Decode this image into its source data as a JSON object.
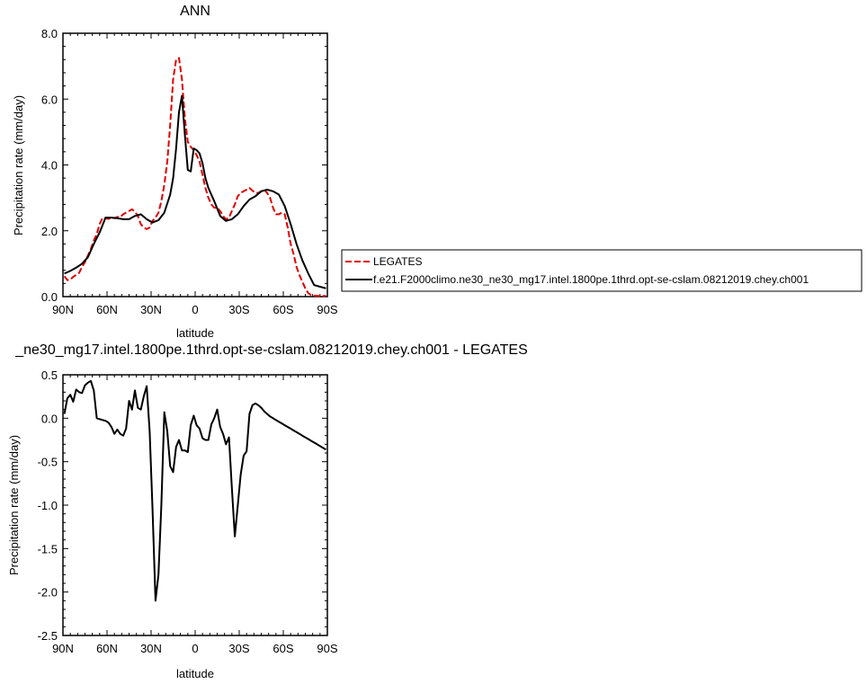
{
  "chart_data": [
    {
      "type": "line",
      "title": "ANN",
      "xlabel": "latitude",
      "ylabel": "Precipitation rate (mm/day)",
      "xlim": [
        90,
        -90
      ],
      "ylim": [
        0,
        8
      ],
      "xticks": [
        90,
        60,
        30,
        0,
        -30,
        -60,
        -90
      ],
      "xtick_labels": [
        "90N",
        "60N",
        "30N",
        "0",
        "30S",
        "60S",
        "90S"
      ],
      "yticks": [
        0,
        2,
        4,
        6,
        8
      ],
      "ytick_labels": [
        "0.0",
        "2.0",
        "4.0",
        "6.0",
        "8.0"
      ],
      "legend_position": "right",
      "series": [
        {
          "name": "LEGATES",
          "color": "#e00000",
          "dash": "dashed",
          "x": [
            89,
            87,
            85,
            83,
            81,
            79,
            77,
            75,
            73,
            71,
            69,
            67,
            65,
            63,
            61,
            59,
            57,
            55,
            53,
            51,
            49,
            47,
            45,
            43,
            41,
            39,
            37,
            35,
            33,
            31,
            29,
            27,
            25,
            23,
            21,
            19,
            17,
            15,
            13,
            11,
            9,
            7,
            5,
            3,
            1,
            -1,
            -3,
            -5,
            -7,
            -9,
            -11,
            -13,
            -15,
            -17,
            -19,
            -21,
            -23,
            -25,
            -27,
            -29,
            -31,
            -33,
            -35,
            -37,
            -39,
            -41,
            -43,
            -45,
            -47,
            -49,
            -51,
            -53,
            -55,
            -57,
            -59,
            -61,
            -63,
            -65,
            -67,
            -69,
            -71,
            -73,
            -75,
            -77,
            -79,
            -81,
            -83,
            -85,
            -87,
            -89
          ],
          "y": [
            0.62,
            0.5,
            0.52,
            0.6,
            0.66,
            0.72,
            0.9,
            1.05,
            1.25,
            1.45,
            1.7,
            1.9,
            2.2,
            2.4,
            2.38,
            2.36,
            2.4,
            2.38,
            2.42,
            2.42,
            2.5,
            2.55,
            2.6,
            2.65,
            2.58,
            2.45,
            2.2,
            2.1,
            2.05,
            2.1,
            2.3,
            2.4,
            2.55,
            2.9,
            3.4,
            4.1,
            5.2,
            6.6,
            7.2,
            7.25,
            6.6,
            5.4,
            4.7,
            4.55,
            4.45,
            4.3,
            4.1,
            3.7,
            3.3,
            3.0,
            2.8,
            2.7,
            2.7,
            2.6,
            2.45,
            2.35,
            2.4,
            2.6,
            2.8,
            3.05,
            3.15,
            3.2,
            3.25,
            3.3,
            3.22,
            3.15,
            3.15,
            3.2,
            3.25,
            3.15,
            3.0,
            2.7,
            2.5,
            2.5,
            2.55,
            2.5,
            2.1,
            1.6,
            1.3,
            0.9,
            0.65,
            0.45,
            0.25,
            0.1,
            0.05,
            0.03,
            0.02,
            0.02,
            0.02,
            0.02
          ]
        },
        {
          "name": "f.e21.F2000climo.ne30_ne30_mg17.intel.1800pe.1thrd.opt-se-cslam.08212019.chey.ch001",
          "color": "#000000",
          "dash": "solid",
          "x": [
            89,
            85,
            81,
            77,
            73,
            69,
            65,
            61,
            57,
            53,
            49,
            45,
            41,
            37,
            33,
            29,
            25,
            21,
            17,
            15,
            13,
            11,
            9,
            7,
            5,
            3,
            1,
            -1,
            -3,
            -5,
            -7,
            -9,
            -13,
            -17,
            -21,
            -25,
            -29,
            -33,
            -37,
            -41,
            -45,
            -49,
            -53,
            -57,
            -61,
            -65,
            -69,
            -73,
            -77,
            -81,
            -85,
            -89
          ],
          "y": [
            0.7,
            0.78,
            0.88,
            1.0,
            1.2,
            1.6,
            1.95,
            2.4,
            2.4,
            2.38,
            2.35,
            2.35,
            2.45,
            2.5,
            2.35,
            2.25,
            2.32,
            2.55,
            3.1,
            3.6,
            4.5,
            5.6,
            6.1,
            4.9,
            3.85,
            3.8,
            4.5,
            4.45,
            4.35,
            4.05,
            3.6,
            3.3,
            2.9,
            2.45,
            2.3,
            2.35,
            2.5,
            2.75,
            2.95,
            3.05,
            3.2,
            3.25,
            3.2,
            3.1,
            2.75,
            2.2,
            1.6,
            1.1,
            0.7,
            0.35,
            0.3,
            0.25
          ]
        }
      ]
    },
    {
      "type": "line",
      "title": "_ne30_mg17.intel.1800pe.1thrd.opt-se-cslam.08212019.chey.ch001 - LEGATES",
      "xlabel": "latitude",
      "ylabel": "Precipitation rate (mm/day)",
      "xlim": [
        90,
        -90
      ],
      "ylim": [
        -2.5,
        0.5
      ],
      "xticks": [
        90,
        60,
        30,
        0,
        -30,
        -60,
        -90
      ],
      "xtick_labels": [
        "90N",
        "60N",
        "30N",
        "0",
        "30S",
        "60S",
        "90S"
      ],
      "yticks": [
        -2.5,
        -2.0,
        -1.5,
        -1.0,
        -0.5,
        0.0,
        0.5
      ],
      "ytick_labels": [
        "-2.5",
        "-2.0",
        "-1.5",
        "-1.0",
        "-0.5",
        "0.0",
        "0.5"
      ],
      "series": [
        {
          "color": "#000000",
          "dash": "solid",
          "x": [
            89,
            87,
            85,
            83,
            81,
            79,
            77,
            75,
            73,
            71,
            69,
            67,
            65,
            63,
            61,
            59,
            57,
            55,
            53,
            51,
            49,
            47,
            45,
            43,
            41,
            39,
            37,
            35,
            33,
            31,
            29,
            27,
            25,
            23,
            21,
            19,
            17,
            15,
            13,
            11,
            9,
            7,
            5,
            3,
            1,
            -1,
            -3,
            -5,
            -7,
            -9,
            -11,
            -13,
            -15,
            -17,
            -19,
            -21,
            -23,
            -25,
            -27,
            -29,
            -31,
            -33,
            -35,
            -37,
            -39,
            -41,
            -43,
            -45,
            -47,
            -49,
            -51,
            -53,
            -55,
            -57,
            -59,
            -61,
            -63,
            -65,
            -67,
            -69,
            -71,
            -73,
            -75,
            -77,
            -79,
            -81,
            -83,
            -85,
            -87,
            -89
          ],
          "y": [
            0.05,
            0.23,
            0.27,
            0.19,
            0.33,
            0.3,
            0.29,
            0.38,
            0.41,
            0.43,
            0.32,
            0.0,
            -0.01,
            -0.02,
            -0.03,
            -0.05,
            -0.1,
            -0.18,
            -0.13,
            -0.18,
            -0.2,
            -0.12,
            0.2,
            0.1,
            0.32,
            0.12,
            0.1,
            0.25,
            0.37,
            -0.15,
            -1.05,
            -2.1,
            -1.8,
            -1.0,
            0.07,
            -0.15,
            -0.55,
            -0.62,
            -0.33,
            -0.25,
            -0.37,
            -0.37,
            -0.39,
            -0.08,
            0.03,
            -0.08,
            -0.12,
            -0.23,
            -0.25,
            -0.25,
            -0.07,
            0.0,
            0.1,
            -0.1,
            -0.18,
            -0.3,
            -0.22,
            -0.8,
            -1.36,
            -1.0,
            -0.65,
            -0.43,
            -0.38,
            0.05,
            0.15,
            0.17,
            0.15,
            0.12,
            0.08,
            0.05,
            0.02,
            0.0,
            -0.02,
            -0.04,
            -0.06,
            -0.08,
            -0.1,
            -0.12,
            -0.14,
            -0.16,
            -0.18,
            -0.2,
            -0.22,
            -0.24,
            -0.26,
            -0.28,
            -0.3,
            -0.32,
            -0.34,
            -0.36
          ]
        }
      ]
    }
  ]
}
